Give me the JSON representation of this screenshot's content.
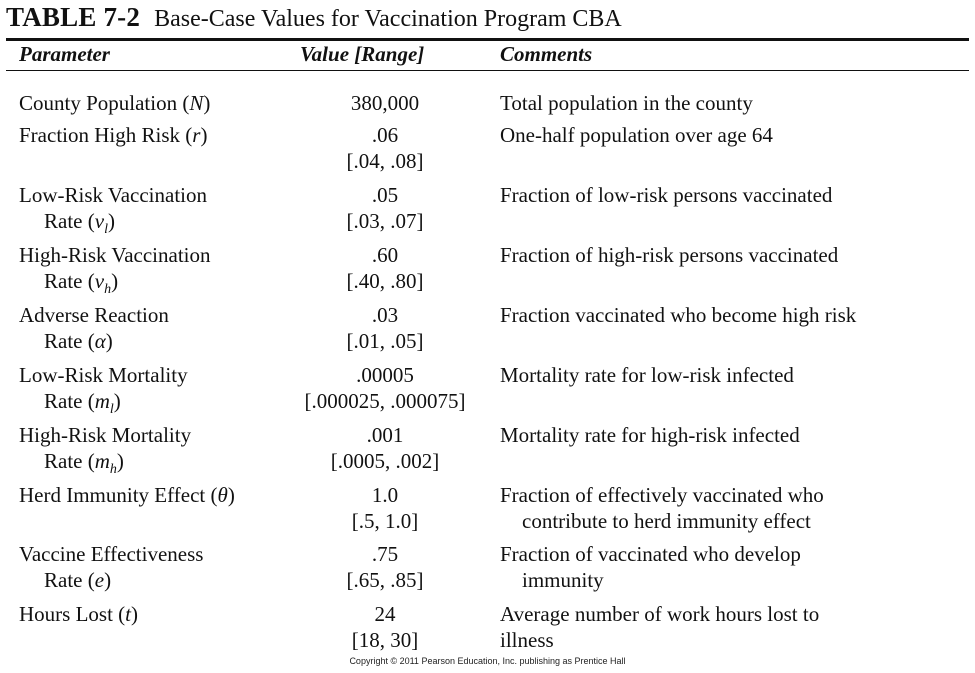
{
  "table": {
    "number": "TABLE 7-2",
    "caption": "Base-Case Values for Vaccination Program CBA"
  },
  "headers": {
    "parameter": "Parameter",
    "value": "Value [Range]",
    "comments": "Comments"
  },
  "rows": [
    {
      "param_line1": "County Population",
      "param_line1_sym": "N",
      "value": "380,000",
      "comment_line1": "Total population in the county"
    },
    {
      "param_line1": "Fraction High Risk",
      "param_line1_sym": "r",
      "value": ".06",
      "range": "[.04, .08]",
      "comment_line1": "One-half population over age 64"
    },
    {
      "param_line1": "Low-Risk Vaccination",
      "param_line2": "Rate",
      "sym": "v",
      "sub": "l",
      "value": ".05",
      "range": "[.03, .07]",
      "comment_line1": "Fraction of low-risk persons vaccinated"
    },
    {
      "param_line1": "High-Risk Vaccination",
      "param_line2": "Rate",
      "sym": "v",
      "sub": "h",
      "value": ".60",
      "range": "[.40, .80]",
      "comment_line1": "Fraction of high-risk persons vaccinated"
    },
    {
      "param_line1": "Adverse Reaction",
      "param_line2": "Rate",
      "sym": "α",
      "value": ".03",
      "range": "[.01, .05]",
      "comment_line1": "Fraction vaccinated who become high risk"
    },
    {
      "param_line1": "Low-Risk Mortality",
      "param_line2": "Rate",
      "sym": "m",
      "sub": "l",
      "value": ".00005",
      "range": "[.000025, .000075]",
      "comment_line1": "Mortality rate for low-risk infected"
    },
    {
      "param_line1": "High-Risk Mortality",
      "param_line2": "Rate",
      "sym": "m",
      "sub": "h",
      "value": ".001",
      "range": "[.0005, .002]",
      "comment_line1": "Mortality rate for high-risk infected"
    },
    {
      "param_line1": "Herd Immunity Effect",
      "param_line1_sym": "θ",
      "value": "1.0",
      "range": "[.5, 1.0]",
      "comment_line1": "Fraction of effectively vaccinated who",
      "comment_line2": "contribute to herd immunity effect"
    },
    {
      "param_line1": "Vaccine Effectiveness",
      "param_line2": "Rate",
      "sym": "e",
      "value": ".75",
      "range": "[.65, .85]",
      "comment_line1": "Fraction of vaccinated who develop",
      "comment_line2": "immunity"
    },
    {
      "param_line1": "Hours Lost",
      "param_line1_sym": "t",
      "value": "24",
      "range": "[18, 30]",
      "comment_line1": "Average number of work hours lost to",
      "comment_line2_flush": "illness"
    }
  ],
  "footer": {
    "copyright": "Copyright © 2011 Pearson Education, Inc. publishing as Prentice Hall"
  }
}
